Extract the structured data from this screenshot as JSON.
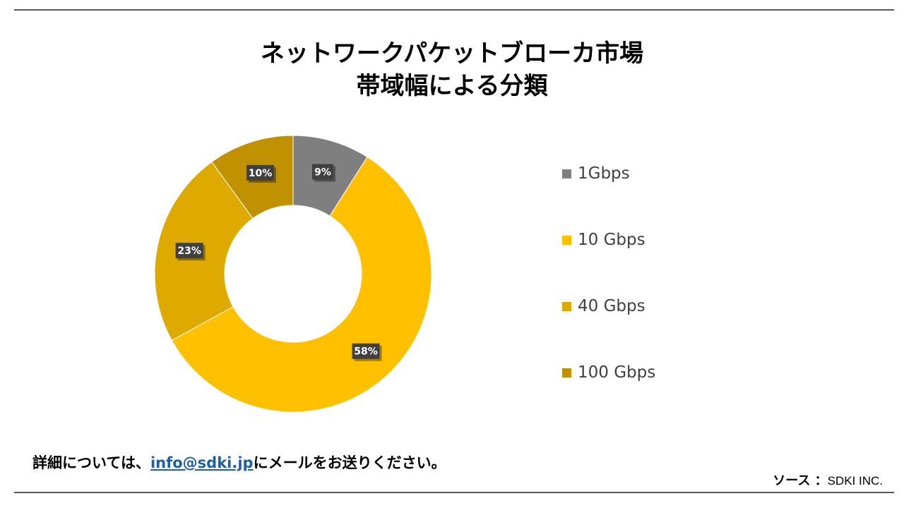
{
  "title_line1": "ネットワークパケットブローカ市場",
  "title_line2": "帯域幅による分類",
  "chart_data": {
    "type": "pie",
    "donut": true,
    "title": "ネットワークパケットブローカ市場 帯域幅による分類",
    "categories": [
      "1Gbps",
      "10 Gbps",
      "40 Gbps",
      "100 Gbps"
    ],
    "values": [
      9,
      58,
      23,
      10
    ],
    "value_labels": [
      "9%",
      "58%",
      "23%",
      "10%"
    ],
    "colors": [
      "#7f7f7f",
      "#ffc000",
      "#deaa00",
      "#c09100"
    ],
    "legend_position": "right"
  },
  "footer": {
    "note_before": "詳細については、",
    "email": "info@sdki.jp",
    "note_after": "にメールをお送りください。",
    "source_label": "ソース ：",
    "source_value": "SDKI INC."
  }
}
